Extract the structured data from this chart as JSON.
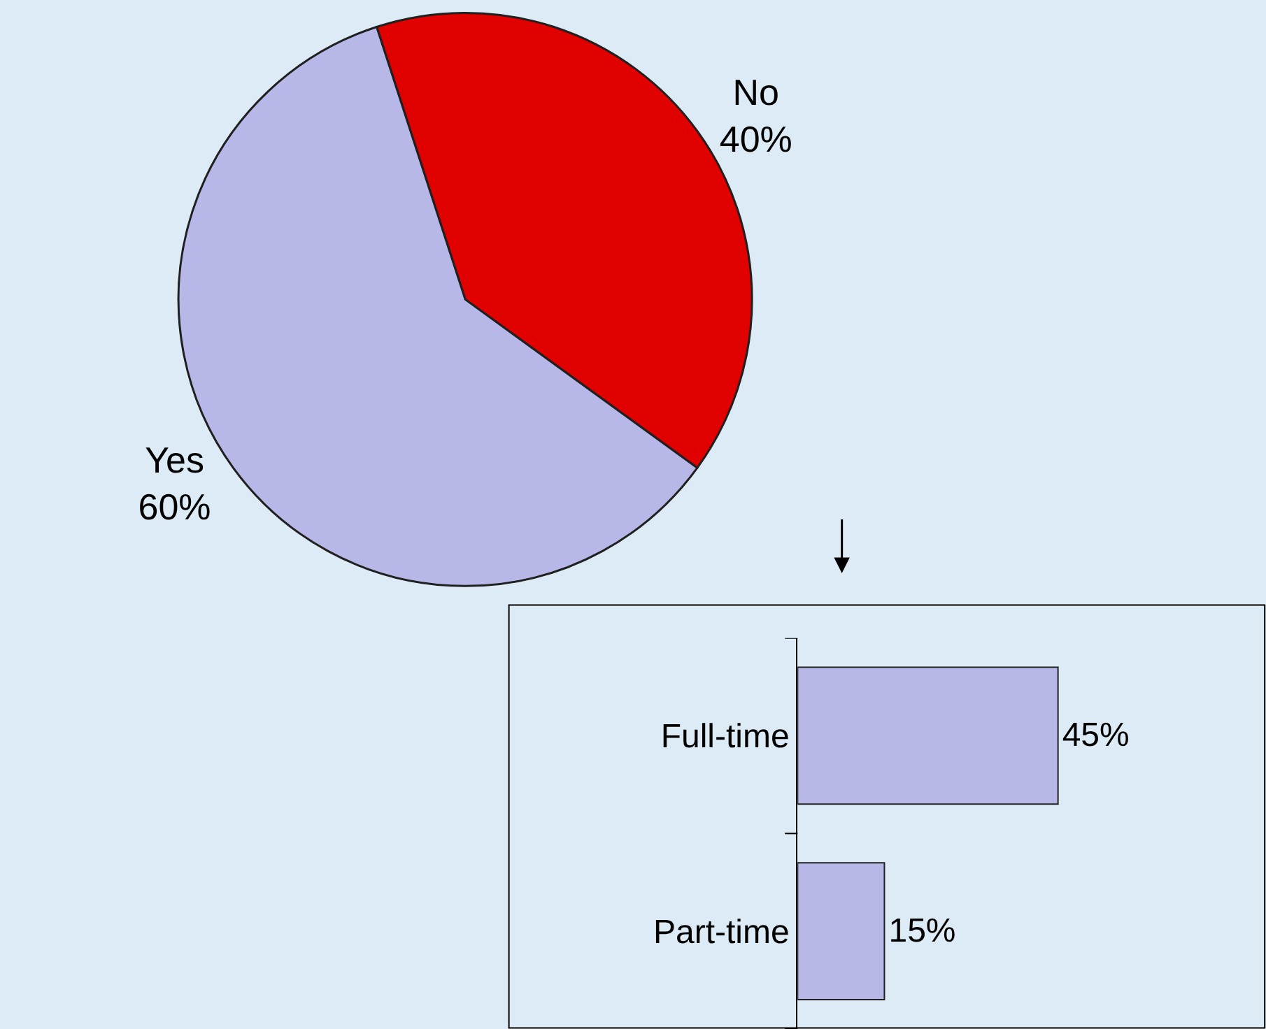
{
  "chart_data": [
    {
      "type": "pie",
      "categories": [
        "No",
        "Yes"
      ],
      "values": [
        40,
        60
      ],
      "colors": [
        "#e00000",
        "#b8b8e8"
      ],
      "value_labels": [
        "40%",
        "60%"
      ]
    },
    {
      "type": "bar",
      "orientation": "horizontal",
      "categories": [
        "Full-time",
        "Part-time"
      ],
      "values": [
        45,
        15
      ],
      "color": "#b8b8e8",
      "value_labels": [
        "45%",
        "15%"
      ]
    }
  ]
}
